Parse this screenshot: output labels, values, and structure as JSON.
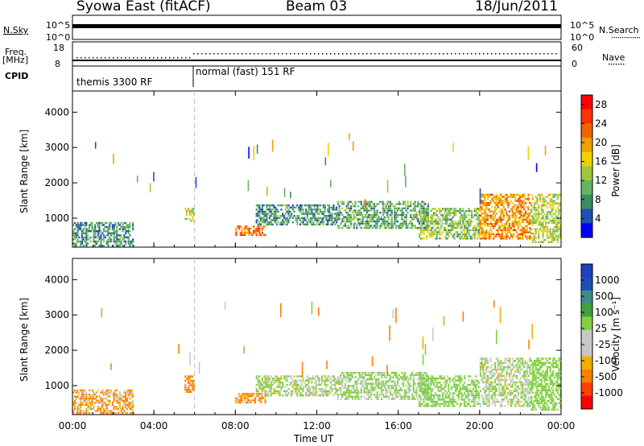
{
  "header": {
    "station": "Syowa East (fitACF)",
    "beam": "Beam 03",
    "date": "18/Jun/2011"
  },
  "top_panels": {
    "nsky_label": "N.Sky",
    "nsky_ticks": [
      "10^5",
      "10^0"
    ],
    "nsearch_label": "N.Search",
    "nsearch_ticks": [
      "10^5",
      "10^0"
    ],
    "freq_label": "Freq.",
    "freq_unit": "[MHz]",
    "freq_ticks": [
      "18",
      "8"
    ],
    "nave_label": "Nave",
    "nave_ticks": [
      "60",
      "0"
    ],
    "cpid_label": "CPID",
    "cpid_entries": [
      "themis 3300 RF",
      "normal (fast) 151 RF"
    ]
  },
  "colors": {
    "power_scale": [
      "#0000ff",
      "#1e50b4",
      "#3c8c64",
      "#64b464",
      "#a0c83c",
      "#f0d200",
      "#f0a000",
      "#f06400",
      "#ff3200",
      "#ff0000"
    ],
    "velocity_scale": [
      "#ff0000",
      "#ff4000",
      "#ff8000",
      "#f0b000",
      "#c8c8c8",
      "#c8c8c8",
      "#80d040",
      "#40a040",
      "#3c8c8c",
      "#1e50b4",
      "#2040c0"
    ]
  },
  "chart_data": [
    {
      "type": "heatmap",
      "panel": "power",
      "xlabel": "Time UT",
      "ylabel": "Slant Range [km]",
      "x_ticks": [
        "00:00",
        "04:00",
        "08:00",
        "12:00",
        "16:00",
        "20:00",
        "00:00"
      ],
      "x_range_hours": [
        0,
        24
      ],
      "y_ticks": [
        1000,
        2000,
        3000,
        4000
      ],
      "y_range": [
        180,
        4600
      ],
      "colorbar_label": "Power [dB]",
      "colorbar_ticks": [
        4,
        8,
        12,
        16,
        20,
        24,
        28
      ],
      "colorbar_range": [
        0,
        30
      ],
      "echo_regions": [
        {
          "t0": 0.0,
          "t1": 3.0,
          "r0": 200,
          "r1": 900,
          "value": 8
        },
        {
          "t0": 5.5,
          "t1": 6.0,
          "r0": 900,
          "r1": 1300,
          "value": 14
        },
        {
          "t0": 8.0,
          "t1": 9.5,
          "r0": 500,
          "r1": 800,
          "value": 22
        },
        {
          "t0": 9.0,
          "t1": 13.0,
          "r0": 800,
          "r1": 1400,
          "value": 8
        },
        {
          "t0": 13.0,
          "t1": 17.5,
          "r0": 700,
          "r1": 1500,
          "value": 10
        },
        {
          "t0": 17.0,
          "t1": 20.0,
          "r0": 400,
          "r1": 1300,
          "value": 12
        },
        {
          "t0": 20.0,
          "t1": 22.5,
          "r0": 400,
          "r1": 1700,
          "value": 20
        },
        {
          "t0": 22.5,
          "t1": 24.0,
          "r0": 300,
          "r1": 1700,
          "value": 14
        }
      ]
    },
    {
      "type": "heatmap",
      "panel": "velocity",
      "xlabel": "Time UT",
      "ylabel": "Slant Range [km]",
      "x_ticks": [
        "00:00",
        "04:00",
        "08:00",
        "12:00",
        "16:00",
        "20:00",
        "00:00"
      ],
      "x_range_hours": [
        0,
        24
      ],
      "y_ticks": [
        1000,
        2000,
        3000,
        4000
      ],
      "y_range": [
        180,
        4600
      ],
      "colorbar_label": "Velocity [m s⁻¹]",
      "colorbar_ticks": [
        1000,
        500,
        100,
        25,
        -25,
        -100,
        -500,
        -1000
      ],
      "echo_regions": [
        {
          "t0": 0.0,
          "t1": 3.0,
          "r0": 200,
          "r1": 900,
          "value": -100
        },
        {
          "t0": 5.5,
          "t1": 6.0,
          "r0": 800,
          "r1": 1300,
          "value": -300
        },
        {
          "t0": 8.0,
          "t1": 9.5,
          "r0": 500,
          "r1": 800,
          "value": -150
        },
        {
          "t0": 9.0,
          "t1": 13.0,
          "r0": 700,
          "r1": 1300,
          "value": 100
        },
        {
          "t0": 13.0,
          "t1": 17.5,
          "r0": 600,
          "r1": 1400,
          "value": 150
        },
        {
          "t0": 17.0,
          "t1": 20.0,
          "r0": 400,
          "r1": 1300,
          "value": 200
        },
        {
          "t0": 20.0,
          "t1": 22.5,
          "r0": 400,
          "r1": 1800,
          "value": 100
        },
        {
          "t0": 22.5,
          "t1": 24.0,
          "r0": 300,
          "r1": 1800,
          "value": 300
        }
      ]
    }
  ]
}
